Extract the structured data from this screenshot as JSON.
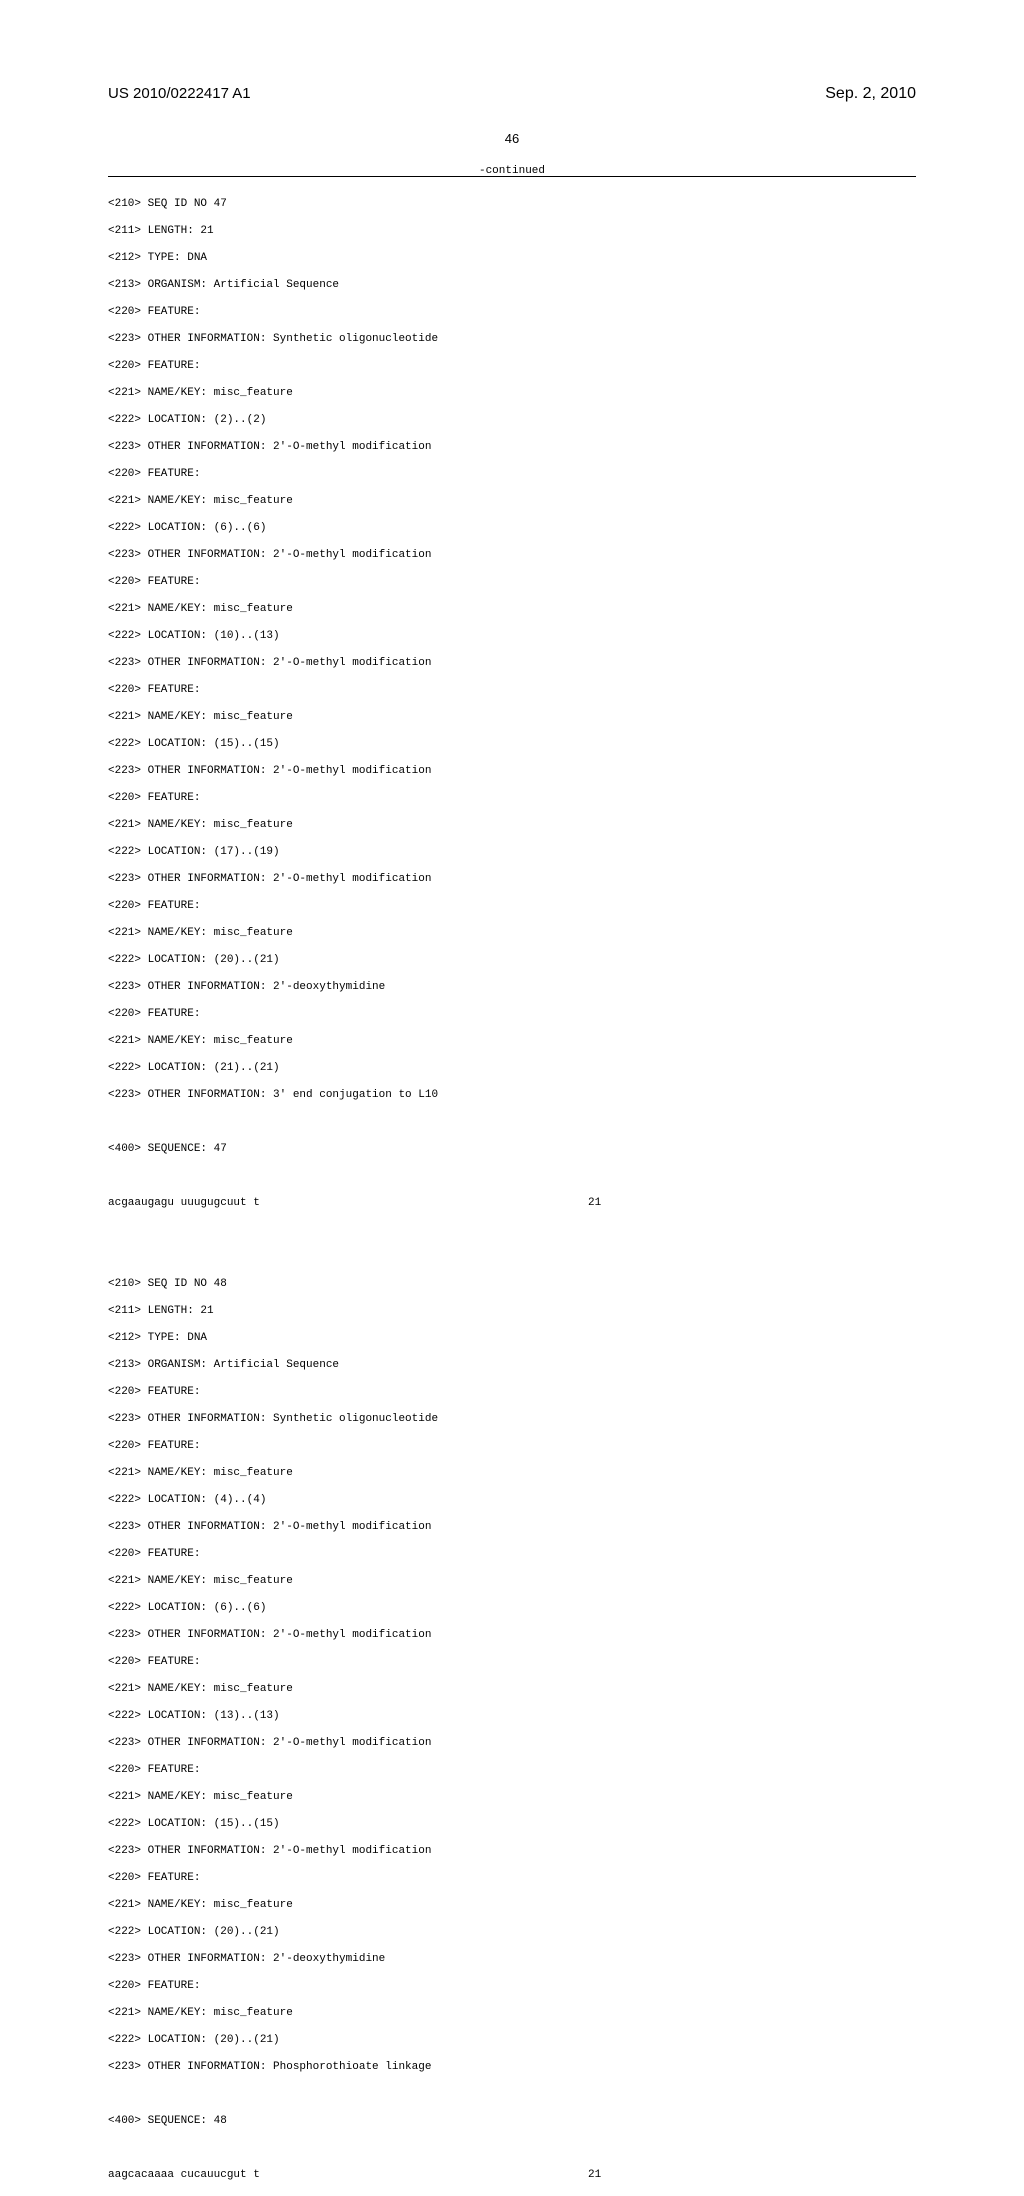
{
  "header": {
    "pub_num": "US 2010/0222417 A1",
    "pub_date": "Sep. 2, 2010",
    "page": "46",
    "continued": "-continued"
  },
  "seq47": {
    "l1": "<210> SEQ ID NO 47",
    "l2": "<211> LENGTH: 21",
    "l3": "<212> TYPE: DNA",
    "l4": "<213> ORGANISM: Artificial Sequence",
    "l5": "<220> FEATURE:",
    "l6": "<223> OTHER INFORMATION: Synthetic oligonucleotide",
    "l7": "<220> FEATURE:",
    "l8": "<221> NAME/KEY: misc_feature",
    "l9": "<222> LOCATION: (2)..(2)",
    "l10": "<223> OTHER INFORMATION: 2'-O-methyl modification",
    "l11": "<220> FEATURE:",
    "l12": "<221> NAME/KEY: misc_feature",
    "l13": "<222> LOCATION: (6)..(6)",
    "l14": "<223> OTHER INFORMATION: 2'-O-methyl modification",
    "l15": "<220> FEATURE:",
    "l16": "<221> NAME/KEY: misc_feature",
    "l17": "<222> LOCATION: (10)..(13)",
    "l18": "<223> OTHER INFORMATION: 2'-O-methyl modification",
    "l19": "<220> FEATURE:",
    "l20": "<221> NAME/KEY: misc_feature",
    "l21": "<222> LOCATION: (15)..(15)",
    "l22": "<223> OTHER INFORMATION: 2'-O-methyl modification",
    "l23": "<220> FEATURE:",
    "l24": "<221> NAME/KEY: misc_feature",
    "l25": "<222> LOCATION: (17)..(19)",
    "l26": "<223> OTHER INFORMATION: 2'-O-methyl modification",
    "l27": "<220> FEATURE:",
    "l28": "<221> NAME/KEY: misc_feature",
    "l29": "<222> LOCATION: (20)..(21)",
    "l30": "<223> OTHER INFORMATION: 2'-deoxythymidine",
    "l31": "<220> FEATURE:",
    "l32": "<221> NAME/KEY: misc_feature",
    "l33": "<222> LOCATION: (21)..(21)",
    "l34": "<223> OTHER INFORMATION: 3' end conjugation to L10",
    "l36": "<400> SEQUENCE: 47",
    "seq": "acgaaugagu uuugugcuut t",
    "seqnum": "21"
  },
  "seq48": {
    "l1": "<210> SEQ ID NO 48",
    "l2": "<211> LENGTH: 21",
    "l3": "<212> TYPE: DNA",
    "l4": "<213> ORGANISM: Artificial Sequence",
    "l5": "<220> FEATURE:",
    "l6": "<223> OTHER INFORMATION: Synthetic oligonucleotide",
    "l7": "<220> FEATURE:",
    "l8": "<221> NAME/KEY: misc_feature",
    "l9": "<222> LOCATION: (4)..(4)",
    "l10": "<223> OTHER INFORMATION: 2'-O-methyl modification",
    "l11": "<220> FEATURE:",
    "l12": "<221> NAME/KEY: misc_feature",
    "l13": "<222> LOCATION: (6)..(6)",
    "l14": "<223> OTHER INFORMATION: 2'-O-methyl modification",
    "l15": "<220> FEATURE:",
    "l16": "<221> NAME/KEY: misc_feature",
    "l17": "<222> LOCATION: (13)..(13)",
    "l18": "<223> OTHER INFORMATION: 2'-O-methyl modification",
    "l19": "<220> FEATURE:",
    "l20": "<221> NAME/KEY: misc_feature",
    "l21": "<222> LOCATION: (15)..(15)",
    "l22": "<223> OTHER INFORMATION: 2'-O-methyl modification",
    "l23": "<220> FEATURE:",
    "l24": "<221> NAME/KEY: misc_feature",
    "l25": "<222> LOCATION: (20)..(21)",
    "l26": "<223> OTHER INFORMATION: 2'-deoxythymidine",
    "l27": "<220> FEATURE:",
    "l28": "<221> NAME/KEY: misc_feature",
    "l29": "<222> LOCATION: (20)..(21)",
    "l30": "<223> OTHER INFORMATION: Phosphorothioate linkage",
    "l32": "<400> SEQUENCE: 48",
    "seq": "aagcacaaaa cucauucgut t",
    "seqnum": "21"
  }
}
